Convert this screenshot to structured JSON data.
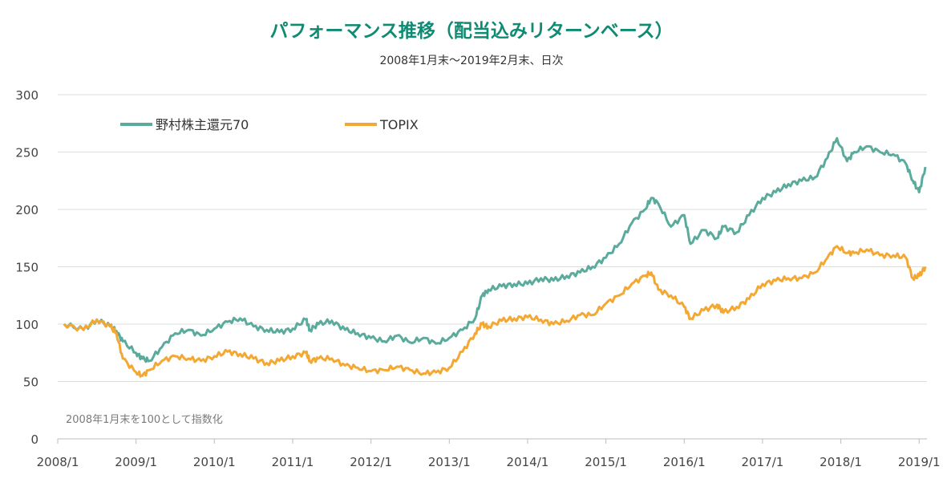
{
  "chart_data": {
    "type": "line",
    "title": "パフォーマンス推移（配当込みリターンベース）",
    "subtitle": "2008年1月末～2019年2月末、日次",
    "note": "2008年1月末を100として指数化",
    "xlabel": "",
    "ylabel": "",
    "ylim": [
      0,
      300
    ],
    "yticks": [
      "0",
      "50",
      "100",
      "150",
      "200",
      "250",
      "300"
    ],
    "xticks": [
      "2008/1",
      "2009/1",
      "2010/1",
      "2011/1",
      "2012/1",
      "2013/1",
      "2014/1",
      "2015/1",
      "2016/1",
      "2017/1",
      "2018/1",
      "2019/1"
    ],
    "x": [
      2008.08,
      2008.33,
      2008.5,
      2008.67,
      2008.75,
      2008.83,
      2009.0,
      2009.08,
      2009.17,
      2009.33,
      2009.5,
      2009.67,
      2009.83,
      2010.0,
      2010.17,
      2010.33,
      2010.5,
      2010.67,
      2010.83,
      2011.0,
      2011.17,
      2011.22,
      2011.33,
      2011.5,
      2011.67,
      2011.83,
      2012.0,
      2012.17,
      2012.33,
      2012.5,
      2012.67,
      2012.83,
      2013.0,
      2013.17,
      2013.33,
      2013.42,
      2013.5,
      2013.67,
      2013.83,
      2014.0,
      2014.17,
      2014.33,
      2014.5,
      2014.67,
      2014.83,
      2015.0,
      2015.17,
      2015.33,
      2015.5,
      2015.58,
      2015.67,
      2015.83,
      2016.0,
      2016.08,
      2016.25,
      2016.42,
      2016.5,
      2016.67,
      2016.83,
      2017.0,
      2017.17,
      2017.33,
      2017.5,
      2017.67,
      2017.83,
      2017.95,
      2018.08,
      2018.17,
      2018.33,
      2018.5,
      2018.67,
      2018.83,
      2018.92,
      2019.0,
      2019.08
    ],
    "series": [
      {
        "name": "野村株主還元70",
        "color": "#5bab9c",
        "values": [
          100,
          95,
          104,
          98,
          94,
          85,
          75,
          70,
          68,
          80,
          92,
          95,
          90,
          96,
          102,
          105,
          98,
          95,
          93,
          96,
          104,
          95,
          100,
          103,
          95,
          92,
          88,
          85,
          90,
          84,
          88,
          83,
          88,
          95,
          105,
          125,
          130,
          133,
          135,
          135,
          140,
          138,
          142,
          145,
          150,
          158,
          170,
          188,
          200,
          210,
          205,
          185,
          195,
          170,
          182,
          175,
          185,
          180,
          195,
          210,
          215,
          222,
          225,
          228,
          245,
          262,
          242,
          250,
          255,
          250,
          248,
          240,
          225,
          215,
          237
        ]
      },
      {
        "name": "TOPIX",
        "color": "#f4a834",
        "values": [
          100,
          95,
          104,
          98,
          92,
          70,
          58,
          55,
          60,
          68,
          72,
          70,
          68,
          72,
          76,
          74,
          70,
          66,
          68,
          72,
          75,
          68,
          70,
          70,
          64,
          62,
          59,
          60,
          63,
          60,
          57,
          58,
          62,
          76,
          92,
          100,
          98,
          103,
          105,
          106,
          104,
          100,
          103,
          108,
          108,
          118,
          125,
          135,
          142,
          145,
          130,
          125,
          115,
          105,
          112,
          117,
          110,
          115,
          122,
          135,
          138,
          140,
          140,
          145,
          158,
          168,
          162,
          162,
          165,
          160,
          160,
          158,
          140,
          142,
          150
        ]
      }
    ]
  }
}
